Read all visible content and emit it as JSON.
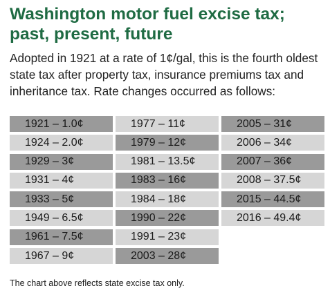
{
  "title_line1": "Washington motor fuel excise tax;",
  "title_line2": "past, present, future",
  "intro": "Adopted in 1921 at a rate of 1¢/gal, this is the fourth oldest state tax after property tax, insurance premiums tax and inheritance tax. Rate changes occurred as follows:",
  "columns": [
    [
      "1921 – 1.0¢",
      "1924 – 2.0¢",
      "1929 – 3¢",
      "1931 – 4¢",
      "1933 – 5¢",
      "1949 – 6.5¢",
      "1961 – 7.5¢",
      "1967 – 9¢"
    ],
    [
      "1977 – 11¢",
      "1979 – 12¢",
      "1981 – 13.5¢",
      "1983 – 16¢",
      "1984 – 18¢",
      "1990 – 22¢",
      "1991 – 23¢",
      "2003 – 28¢"
    ],
    [
      "2005 – 31¢",
      "2006 – 34¢",
      "2007 – 36¢",
      "2008 – 37.5¢",
      "2015 – 44.5¢",
      "2016 – 49.4¢"
    ]
  ],
  "footnote": "The chart above reflects state excise tax only."
}
